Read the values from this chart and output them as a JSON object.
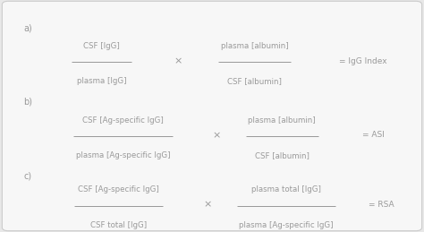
{
  "background_color": "#e8e8e8",
  "panel_color": "#f7f7f7",
  "text_color": "#999999",
  "border_color": "#cccccc",
  "label_a": "a)",
  "label_b": "b)",
  "label_c": "c)",
  "formula_a": {
    "num1": "CSF [IgG]",
    "den1": "plasma [IgG]",
    "times": "×",
    "num2": "plasma [albumin]",
    "den2": "CSF [albumin]",
    "result": "= IgG Index"
  },
  "formula_b": {
    "num1": "CSF [Ag-specific IgG]",
    "den1": "plasma [Ag-specific IgG]",
    "times": "×",
    "num2": "plasma [albumin]",
    "den2": "CSF [albumin]",
    "result": "= ASI"
  },
  "formula_c": {
    "num1": "CSF [Ag-specific IgG]",
    "den1": "CSF total [IgG]",
    "times": "×",
    "num2": "plasma total [IgG]",
    "den2": "plasma [Ag-specific IgG]",
    "result": "= RSA"
  },
  "fontsize_label": 7,
  "fontsize_text": 6.2,
  "fontsize_result": 6.5,
  "fontsize_times": 8
}
